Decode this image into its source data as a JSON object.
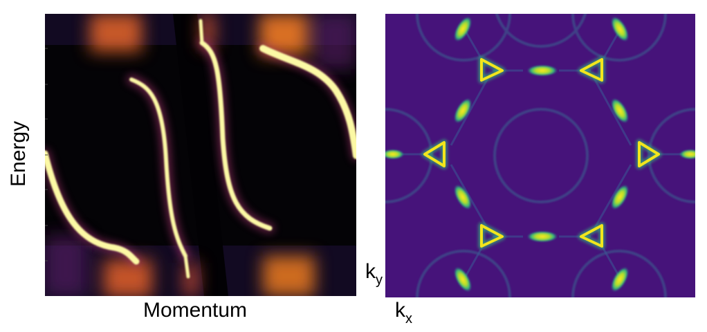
{
  "left_panel": {
    "ylabel": "Energy",
    "xlabel": "Momentum",
    "colors": {
      "background": "#050308",
      "band": "#fcffa4",
      "glow": "#f57d15",
      "mid": "#781c6d"
    }
  },
  "right_panel": {
    "kx_label": "k",
    "kx_sub": "x",
    "ky_label": "k",
    "ky_sub": "y",
    "colors": {
      "background": "#44157a",
      "ring": "#3e4a89",
      "spot": "#f5e71c",
      "spot_edge": "#1fa187"
    }
  }
}
